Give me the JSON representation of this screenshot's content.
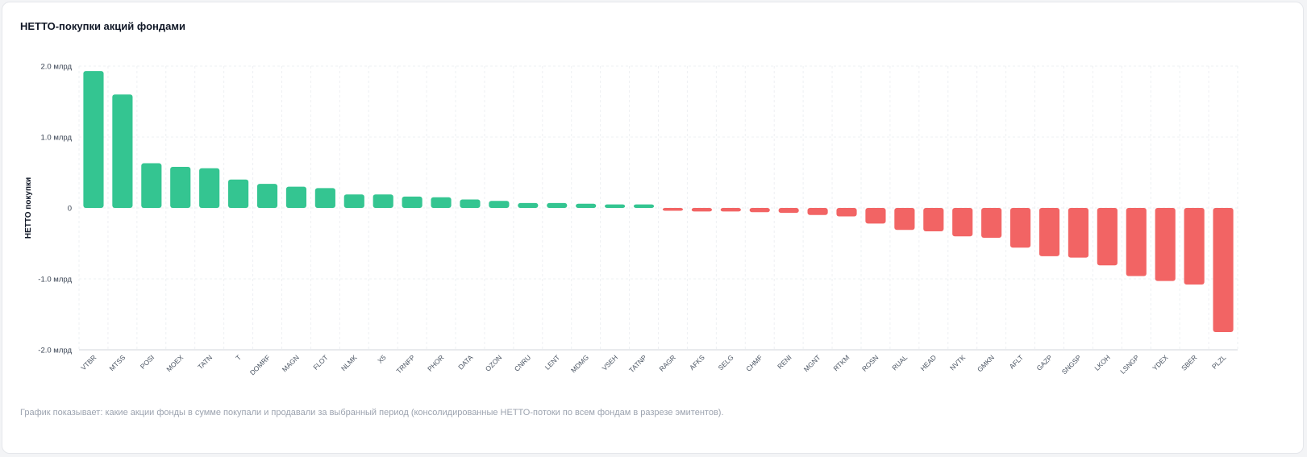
{
  "card": {
    "title": "НЕТТО-покупки акций фондами",
    "footnote": "График показывает: какие акции фонды в сумме покупали и продавали за выбранный период (консолидированные НЕТТО-потоки по всем фондам в разрезе эмитентов)."
  },
  "colors": {
    "positive": "#34c591",
    "negative": "#f26464",
    "grid": "#eef0f3"
  },
  "chart_data": {
    "type": "bar",
    "title": "НЕТТО-покупки акций фондами",
    "xlabel": "",
    "ylabel": "НЕТТО покупки",
    "ylim": [
      -2.0,
      2.0
    ],
    "yunit": "млрд",
    "yticks": [
      {
        "value": 2.0,
        "label": "2.0 млрд"
      },
      {
        "value": 1.0,
        "label": "1.0 млрд"
      },
      {
        "value": 0,
        "label": "0"
      },
      {
        "value": -1.0,
        "label": "-1.0 млрд"
      },
      {
        "value": -2.0,
        "label": "-2.0 млрд"
      }
    ],
    "grid": true,
    "legend": "none",
    "categories": [
      "VTBR",
      "MTSS",
      "POSI",
      "MOEX",
      "TATN",
      "T",
      "DOMRF",
      "MAGN",
      "FLOT",
      "NLMK",
      "X5",
      "TRNFP",
      "PHOR",
      "DATA",
      "OZON",
      "CNRU",
      "LENT",
      "MDMG",
      "VSEH",
      "TATNP",
      "RAGR",
      "AFKS",
      "SELG",
      "CHMF",
      "RENI",
      "MGNT",
      "RTKM",
      "ROSN",
      "RUAL",
      "HEAD",
      "NVTK",
      "GMKN",
      "AFLT",
      "GAZP",
      "SNGSP",
      "LKOH",
      "LSNGP",
      "YDEX",
      "SBER",
      "PLZL"
    ],
    "values": [
      1.93,
      1.6,
      0.63,
      0.58,
      0.56,
      0.4,
      0.34,
      0.3,
      0.28,
      0.19,
      0.19,
      0.16,
      0.15,
      0.12,
      0.1,
      0.07,
      0.07,
      0.06,
      0.05,
      0.05,
      -0.04,
      -0.05,
      -0.05,
      -0.06,
      -0.07,
      -0.1,
      -0.12,
      -0.22,
      -0.31,
      -0.33,
      -0.4,
      -0.42,
      -0.56,
      -0.68,
      -0.7,
      -0.81,
      -0.96,
      -1.03,
      -1.08,
      -1.75
    ]
  }
}
